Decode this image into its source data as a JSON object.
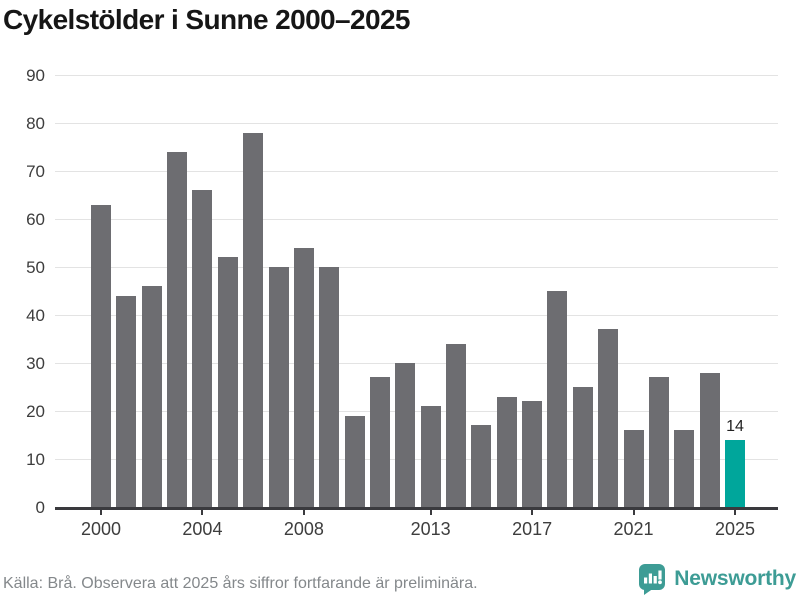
{
  "title": "Cykelstölder i Sunne 2000–2025",
  "chart_data": {
    "type": "bar",
    "title": "Cykelstölder i Sunne 2000–2025",
    "categories": [
      "2000",
      "2001",
      "2002",
      "2003",
      "2004",
      "2005",
      "2006",
      "2007",
      "2008",
      "2009",
      "2010",
      "2011",
      "2012",
      "2013",
      "2014",
      "2015",
      "2016",
      "2017",
      "2018",
      "2019",
      "2020",
      "2021",
      "2022",
      "2023",
      "2024",
      "2025"
    ],
    "values": [
      63,
      44,
      46,
      74,
      66,
      52,
      78,
      50,
      54,
      50,
      19,
      27,
      30,
      21,
      34,
      17,
      23,
      22,
      45,
      25,
      37,
      16,
      27,
      16,
      28,
      14
    ],
    "ylim": [
      0,
      90
    ],
    "yticks": [
      0,
      10,
      20,
      30,
      40,
      50,
      60,
      70,
      80,
      90
    ],
    "xtick_labels": [
      "2000",
      "2004",
      "2008",
      "2013",
      "2017",
      "2021",
      "2025"
    ],
    "grid": "horizontal",
    "legend_position": "none",
    "bar_color": "#6d6d71",
    "highlight": {
      "category": "2025",
      "color": "#00a69b",
      "data_label": "14"
    }
  },
  "footer": {
    "source_note": "Källa: Brå. Observera att 2025 års siffror fortfarande är preliminära.",
    "brand_name": "Newsworthy",
    "brand_color": "#3d9c95",
    "brand_icon": "speech-bubble-bar-chart-icon"
  }
}
